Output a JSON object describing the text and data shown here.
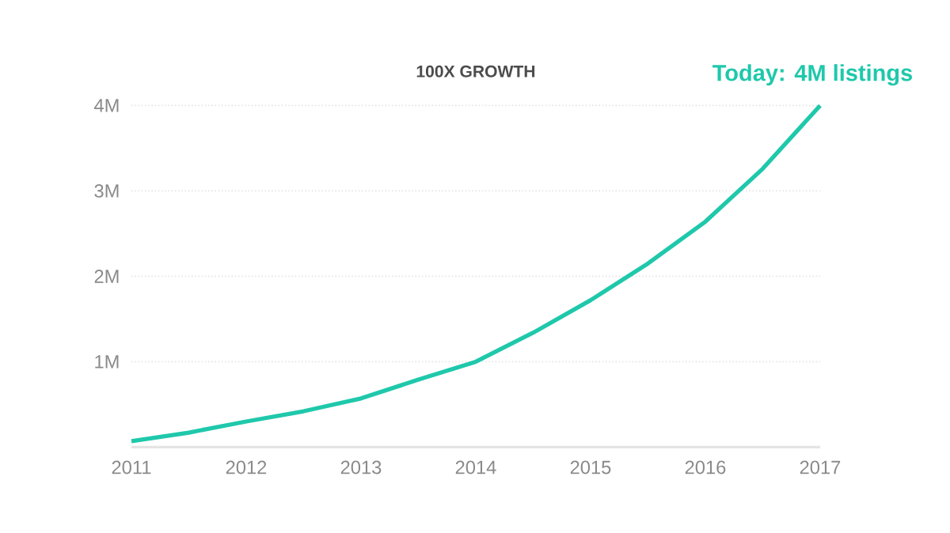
{
  "chart_data": {
    "type": "line",
    "title": "100X GROWTH",
    "x": [
      2011,
      2011.5,
      2012,
      2012.5,
      2013,
      2013.5,
      2014,
      2014.5,
      2015,
      2015.5,
      2016,
      2016.5,
      2017
    ],
    "series": [
      {
        "color": "#1fc8ab",
        "values": [
          70000,
          170000,
          300000,
          420000,
          570000,
          790000,
          1000000,
          1340000,
          1720000,
          2150000,
          2640000,
          3260000,
          4000000
        ]
      }
    ],
    "xlim": [
      2011,
      2017
    ],
    "xticks": [
      2011,
      2012,
      2013,
      2014,
      2015,
      2016,
      2017
    ],
    "ylim": [
      0,
      4000000
    ],
    "yticks": [
      {
        "value": 1000000,
        "label": "1M"
      },
      {
        "value": 2000000,
        "label": "2M"
      },
      {
        "value": 3000000,
        "label": "3M"
      },
      {
        "value": 4000000,
        "label": "4M"
      }
    ],
    "grid": "y",
    "marker": "none",
    "line_style": "solid",
    "annotations": [
      {
        "text": "Today: 4M listings",
        "x": 2017,
        "y": 4000000
      }
    ]
  }
}
